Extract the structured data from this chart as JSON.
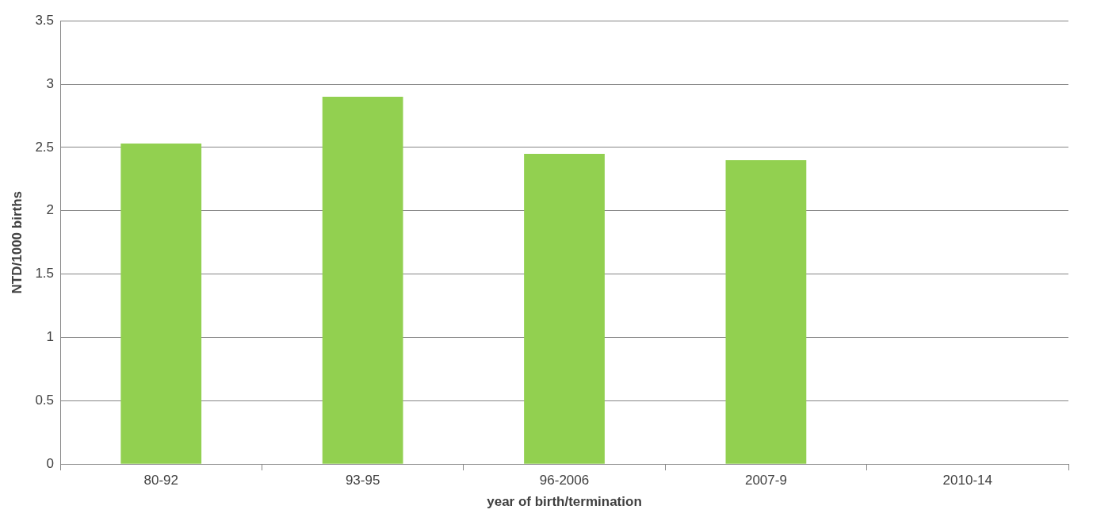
{
  "chart_data": {
    "type": "bar",
    "xlabel": "year of birth/termination",
    "ylabel": "NTD/1000 births",
    "categories": [
      "80-92",
      "93-95",
      "96-2006",
      "2007-9",
      "2010-14"
    ],
    "values": [
      2.53,
      2.9,
      2.45,
      2.4,
      null
    ],
    "color": "#92d050",
    "ylim": [
      0,
      3.5
    ],
    "yticks": [
      0,
      0.5,
      1,
      1.5,
      2,
      2.5,
      3,
      3.5
    ],
    "grid": "y"
  }
}
